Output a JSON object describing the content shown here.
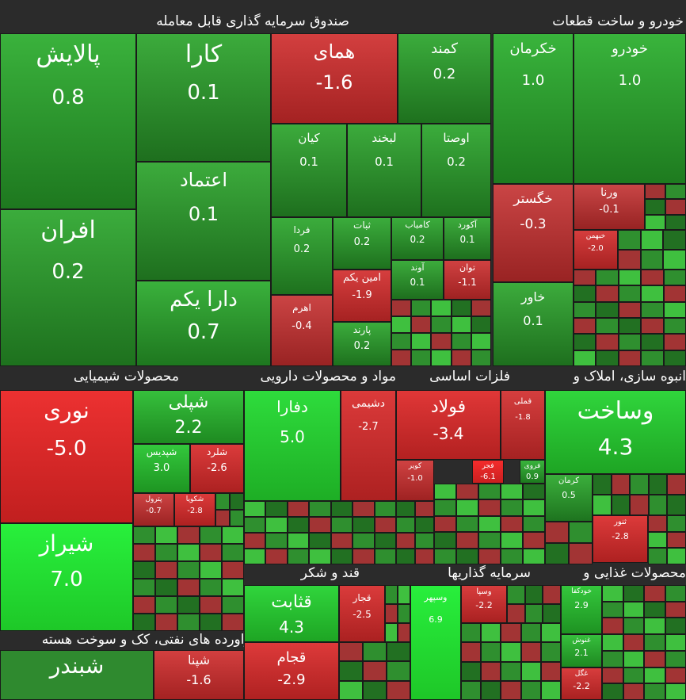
{
  "sectors": [
    {
      "name": "صندوق سرمایه گذاری قابل معامله"
    },
    {
      "name": "خودرو و ساخت قطعات"
    },
    {
      "name": "محصولات شیمیایی"
    },
    {
      "name": "مواد و محصولات دارویی"
    },
    {
      "name": "فلزات اساسی"
    },
    {
      "name": "انبوه سازی، املاک و"
    },
    {
      "name": "قند و شکر"
    },
    {
      "name": "سرمایه گذاریها"
    },
    {
      "name": "محصولات غذایی و"
    },
    {
      "name": "فراورده های نفتی، کک و سوخت هسته"
    }
  ],
  "chart_data": {
    "type": "heatmap",
    "tiles": [
      {
        "name": "پالایش",
        "value": "0.8"
      },
      {
        "name": "افران",
        "value": "0.2"
      },
      {
        "name": "کارا",
        "value": "0.1"
      },
      {
        "name": "اعتماد",
        "value": "0.1"
      },
      {
        "name": "دارا یکم",
        "value": "0.7"
      },
      {
        "name": "همای",
        "value": "1.6-"
      },
      {
        "name": "کمند",
        "value": "0.2"
      },
      {
        "name": "کیان",
        "value": "0.1"
      },
      {
        "name": "لبخند",
        "value": "0.1"
      },
      {
        "name": "اوصتا",
        "value": "0.2"
      },
      {
        "name": "فردا",
        "value": "0.2"
      },
      {
        "name": "ثبات",
        "value": "0.2"
      },
      {
        "name": "کامیاب",
        "value": "0.2"
      },
      {
        "name": "آکورد",
        "value": "0.1"
      },
      {
        "name": "آوند",
        "value": "0.1"
      },
      {
        "name": "توان",
        "value": "1.1-"
      },
      {
        "name": "اهرم",
        "value": "0.4-"
      },
      {
        "name": "امین یکم",
        "value": "1.9-"
      },
      {
        "name": "پارند",
        "value": "0.2"
      },
      {
        "name": "خکرمان",
        "value": "1.0"
      },
      {
        "name": "خودرو",
        "value": "1.0"
      },
      {
        "name": "خگستر",
        "value": "0.3-"
      },
      {
        "name": "ورنا",
        "value": "0.1-"
      },
      {
        "name": "خاور",
        "value": "0.1"
      },
      {
        "name": "خبهمن",
        "value": "2.0-"
      },
      {
        "name": "نوری",
        "value": "5.0-"
      },
      {
        "name": "شیراز",
        "value": "7.0"
      },
      {
        "name": "شپلی",
        "value": "2.2"
      },
      {
        "name": "شپدیس",
        "value": "3.0"
      },
      {
        "name": "شلرد",
        "value": "2.6-"
      },
      {
        "name": "پترول",
        "value": "0.7-"
      },
      {
        "name": "شکویا",
        "value": "2.8-"
      },
      {
        "name": "دفارا",
        "value": "5.0"
      },
      {
        "name": "دشیمی",
        "value": "2.7-"
      },
      {
        "name": "فولاد",
        "value": "3.4-"
      },
      {
        "name": "فملی",
        "value": "1.8-"
      },
      {
        "name": "کویر",
        "value": "1.0-"
      },
      {
        "name": "فجر",
        "value": "6.1-"
      },
      {
        "name": "فروی",
        "value": "0.9"
      },
      {
        "name": "وساخت",
        "value": "4.3"
      },
      {
        "name": "کرمان",
        "value": "0.5"
      },
      {
        "name": "ثنور",
        "value": "2.8-"
      },
      {
        "name": "قثابت",
        "value": "4.3"
      },
      {
        "name": "قجار",
        "value": "2.5-"
      },
      {
        "name": "قجام",
        "value": "2.9-"
      },
      {
        "name": "وسپهر",
        "value": "6.9"
      },
      {
        "name": "وسپا",
        "value": "2.2-"
      },
      {
        "name": "خودکفا",
        "value": "2.9"
      },
      {
        "name": "غنوش",
        "value": "2.1"
      },
      {
        "name": "غگل",
        "value": "2.2-"
      },
      {
        "name": "شبندر",
        "value": ""
      },
      {
        "name": "شپنا",
        "value": "1.6-"
      }
    ]
  }
}
